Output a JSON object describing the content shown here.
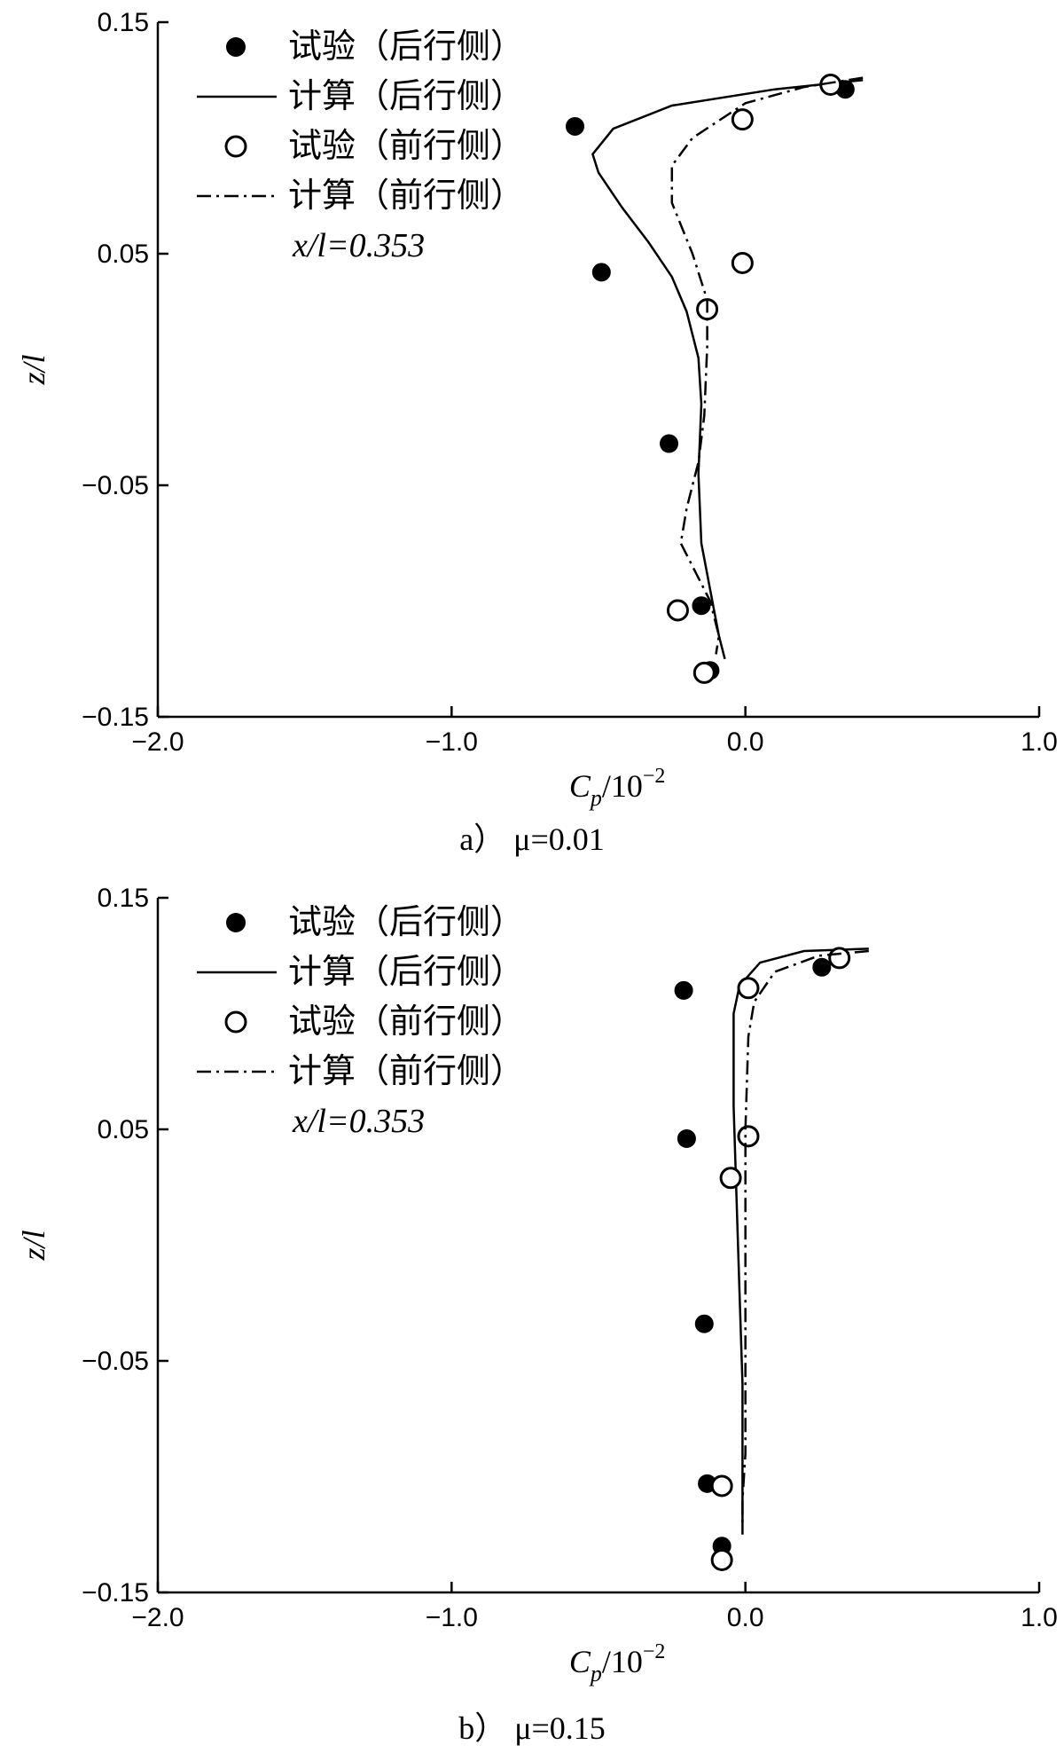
{
  "chart_data": [
    {
      "type": "scatter",
      "caption": "a） μ=0.01",
      "xlabel": "C_p/10^-2",
      "ylabel": "z/l",
      "xlim": [
        -2.0,
        1.0
      ],
      "ylim": [
        -0.15,
        0.15
      ],
      "x_ticks": [
        "−2.0",
        "−1.0",
        "0.0",
        "1.0"
      ],
      "y_ticks": [
        "−0.15",
        "−0.05",
        "0.05",
        "0.15"
      ],
      "note": "x/l=0.353",
      "legend_position": "top-left",
      "series": [
        {
          "name": "试验（后行侧）",
          "kind": "filled-marker",
          "points": [
            [
              0.34,
              0.121
            ],
            [
              -0.58,
              0.105
            ],
            [
              -0.49,
              0.042
            ],
            [
              -0.26,
              -0.032
            ],
            [
              -0.15,
              -0.102
            ],
            [
              -0.12,
              -0.13
            ]
          ]
        },
        {
          "name": "计算（后行侧）",
          "kind": "solid-line",
          "points": [
            [
              0.4,
              0.125
            ],
            [
              0.1,
              0.121
            ],
            [
              -0.25,
              0.114
            ],
            [
              -0.45,
              0.104
            ],
            [
              -0.52,
              0.093
            ],
            [
              -0.5,
              0.085
            ],
            [
              -0.42,
              0.07
            ],
            [
              -0.33,
              0.055
            ],
            [
              -0.25,
              0.04
            ],
            [
              -0.2,
              0.025
            ],
            [
              -0.16,
              0.005
            ],
            [
              -0.15,
              -0.015
            ],
            [
              -0.16,
              -0.045
            ],
            [
              -0.15,
              -0.075
            ],
            [
              -0.12,
              -0.095
            ],
            [
              -0.09,
              -0.115
            ],
            [
              -0.07,
              -0.125
            ]
          ]
        },
        {
          "name": "试验（前行侧）",
          "kind": "open-marker",
          "points": [
            [
              0.29,
              0.123
            ],
            [
              -0.01,
              0.108
            ],
            [
              -0.01,
              0.046
            ],
            [
              -0.13,
              0.026
            ],
            [
              -0.23,
              -0.104
            ],
            [
              -0.14,
              -0.131
            ]
          ]
        },
        {
          "name": "计算（前行侧）",
          "kind": "dashdot-line",
          "points": [
            [
              0.4,
              0.126
            ],
            [
              0.2,
              0.122
            ],
            [
              0.0,
              0.115
            ],
            [
              -0.18,
              0.1
            ],
            [
              -0.25,
              0.088
            ],
            [
              -0.25,
              0.072
            ],
            [
              -0.18,
              0.05
            ],
            [
              -0.13,
              0.03
            ],
            [
              -0.13,
              0.01
            ],
            [
              -0.14,
              -0.02
            ],
            [
              -0.16,
              -0.04
            ],
            [
              -0.2,
              -0.06
            ],
            [
              -0.22,
              -0.075
            ],
            [
              -0.16,
              -0.09
            ],
            [
              -0.12,
              -0.1
            ],
            [
              -0.09,
              -0.115
            ],
            [
              -0.1,
              -0.123
            ]
          ]
        }
      ]
    },
    {
      "type": "scatter",
      "caption": "b） μ=0.15",
      "xlabel": "C_p/10^-2",
      "ylabel": "z/l",
      "xlim": [
        -2.0,
        1.0
      ],
      "ylim": [
        -0.15,
        0.15
      ],
      "x_ticks": [
        "−2.0",
        "−1.0",
        "0.0",
        "1.0"
      ],
      "y_ticks": [
        "−0.15",
        "−0.05",
        "0.05",
        "0.15"
      ],
      "note": "x/l=0.353",
      "legend_position": "top-left",
      "series": [
        {
          "name": "试验（后行侧）",
          "kind": "filled-marker",
          "points": [
            [
              0.26,
              0.12
            ],
            [
              -0.21,
              0.11
            ],
            [
              -0.2,
              0.046
            ],
            [
              -0.14,
              -0.034
            ],
            [
              -0.13,
              -0.103
            ],
            [
              -0.08,
              -0.13
            ]
          ]
        },
        {
          "name": "计算（后行侧）",
          "kind": "solid-line",
          "points": [
            [
              0.42,
              0.128
            ],
            [
              0.2,
              0.127
            ],
            [
              0.05,
              0.122
            ],
            [
              -0.02,
              0.112
            ],
            [
              -0.04,
              0.1
            ],
            [
              -0.04,
              0.06
            ],
            [
              -0.03,
              0.02
            ],
            [
              -0.02,
              -0.02
            ],
            [
              -0.01,
              -0.06
            ],
            [
              -0.01,
              -0.1
            ],
            [
              -0.01,
              -0.125
            ]
          ]
        },
        {
          "name": "试验（前行侧）",
          "kind": "open-marker",
          "points": [
            [
              0.32,
              0.124
            ],
            [
              0.01,
              0.111
            ],
            [
              0.01,
              0.047
            ],
            [
              -0.05,
              0.029
            ],
            [
              -0.08,
              -0.104
            ],
            [
              -0.08,
              -0.136
            ]
          ]
        },
        {
          "name": "计算（前行侧）",
          "kind": "dashdot-line",
          "points": [
            [
              0.42,
              0.127
            ],
            [
              0.25,
              0.125
            ],
            [
              0.1,
              0.118
            ],
            [
              0.03,
              0.105
            ],
            [
              0.01,
              0.09
            ],
            [
              0.0,
              0.05
            ],
            [
              0.0,
              0.0
            ],
            [
              0.0,
              -0.05
            ],
            [
              0.0,
              -0.09
            ],
            [
              -0.01,
              -0.11
            ],
            [
              -0.01,
              -0.122
            ]
          ]
        }
      ]
    }
  ]
}
